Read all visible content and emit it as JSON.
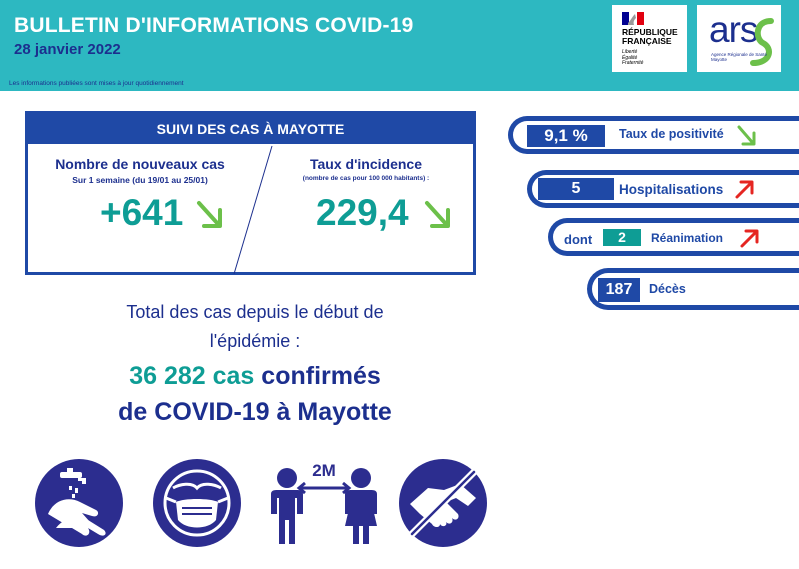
{
  "header": {
    "title": "BULLETIN D'INFORMATIONS COVID-19",
    "date": "28 janvier 2022",
    "note": "Les informations publiées sont mises à jour quotidiennement"
  },
  "logos": {
    "rf_name_1": "RÉPUBLIQUE",
    "rf_name_2": "FRANÇAISE",
    "rf_motto_1": "Liberté",
    "rf_motto_2": "Égalité",
    "rf_motto_3": "Fraternité",
    "ars": "ars",
    "ars_sub_1": "Agence Régionale de Santé",
    "ars_sub_2": "Mayotte"
  },
  "suivi": {
    "title": "SUIVI DES CAS À MAYOTTE",
    "new_cases_label": "Nombre de nouveaux cas",
    "new_cases_period": "Sur 1 semaine (du 19/01 au 25/01)",
    "new_cases_value": "+641",
    "new_cases_trend": "down",
    "incidence_label": "Taux d'incidence",
    "incidence_sub": "(nombre de cas pour 100 000 habitants) :",
    "incidence_value": "229,4",
    "incidence_trend": "down"
  },
  "indicators": {
    "positivity_value": "9,1 %",
    "positivity_label": "Taux de positivité",
    "positivity_trend": "down",
    "hosp_value": "5",
    "hosp_label": "Hospitalisations",
    "hosp_trend": "up",
    "rea_prefix": "dont",
    "rea_value": "2",
    "rea_label": "Réanimation",
    "rea_trend": "up",
    "deaths_value": "187",
    "deaths_label": "Décès"
  },
  "total": {
    "intro_1": "Total des cas depuis le début de",
    "intro_2": "l'épidémie :",
    "count": "36 282 cas",
    "confirmed": "confirmés",
    "line2": "de COVID-19 à Mayotte"
  },
  "gestures": {
    "distance": "2M",
    "icons": [
      "hand-washing-icon",
      "face-mask-icon",
      "social-distance-icon",
      "no-handshake-icon"
    ]
  },
  "colors": {
    "teal": "#2db8c1",
    "navy": "#1c2f8e",
    "blue": "#1f49a6",
    "green_value": "#0e9d95",
    "arrow_down": "#6cc04a",
    "arrow_up": "#e52521"
  }
}
